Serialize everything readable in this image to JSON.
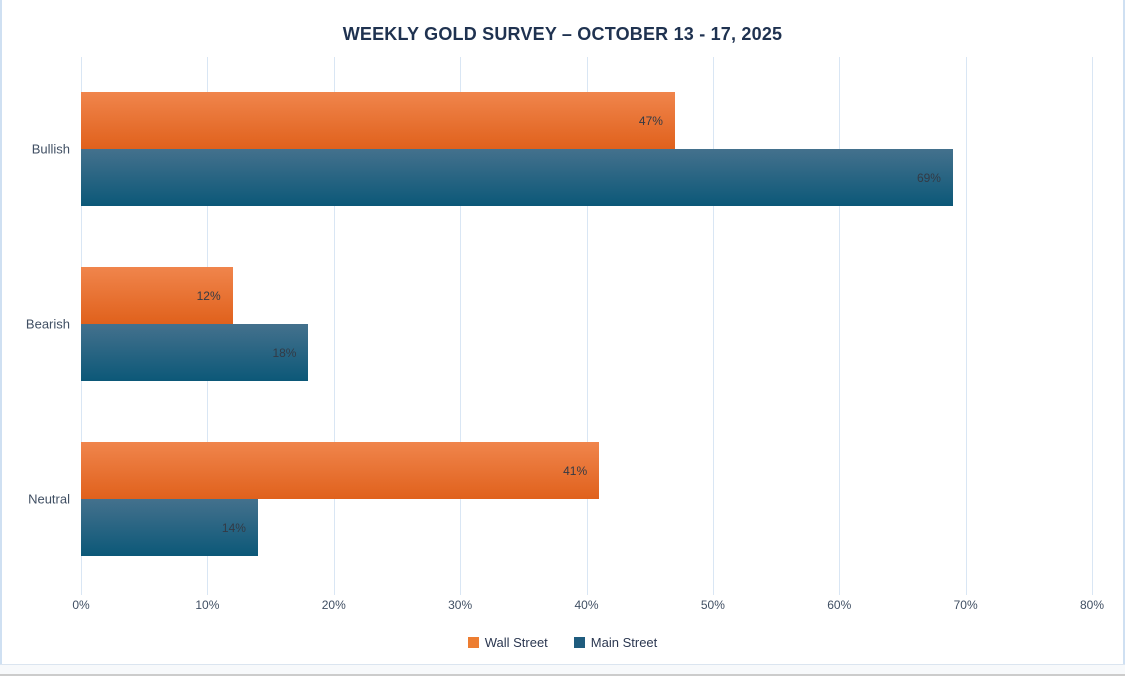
{
  "chart_data": {
    "type": "bar",
    "orientation": "horizontal",
    "title": "WEEKLY GOLD SURVEY – OCTOBER 13 - 17, 2025",
    "categories": [
      "Bullish",
      "Bearish",
      "Neutral"
    ],
    "series": [
      {
        "name": "Wall Street",
        "values": [
          47,
          12,
          41
        ],
        "color": "#ED7D31"
      },
      {
        "name": "Main Street",
        "values": [
          69,
          18,
          14
        ],
        "color": "#1F5C7E"
      }
    ],
    "value_suffix": "%",
    "data_labels": [
      "47%",
      "69%",
      "12%",
      "18%",
      "41%",
      "14%"
    ],
    "xlabel": "",
    "ylabel": "",
    "x_ticks": [
      "0%",
      "10%",
      "20%",
      "30%",
      "40%",
      "50%",
      "60%",
      "70%",
      "80%"
    ],
    "xlim": [
      0,
      80
    ],
    "grid": "vertical",
    "legend_position": "bottom"
  },
  "colors": {
    "title_text": "#1F3250",
    "axis_text": "#404F63",
    "data_label_text": "#333A45",
    "gridline": "#D9E6F4",
    "wall_street_gradient_top": "#F0854C",
    "wall_street_gradient_bottom": "#E0611C",
    "main_street_gradient_top": "#44718D",
    "main_street_gradient_bottom": "#0C5878",
    "chart_side_border": "#CFE0F2",
    "bottom_bar_background": "#F7F9FB"
  }
}
